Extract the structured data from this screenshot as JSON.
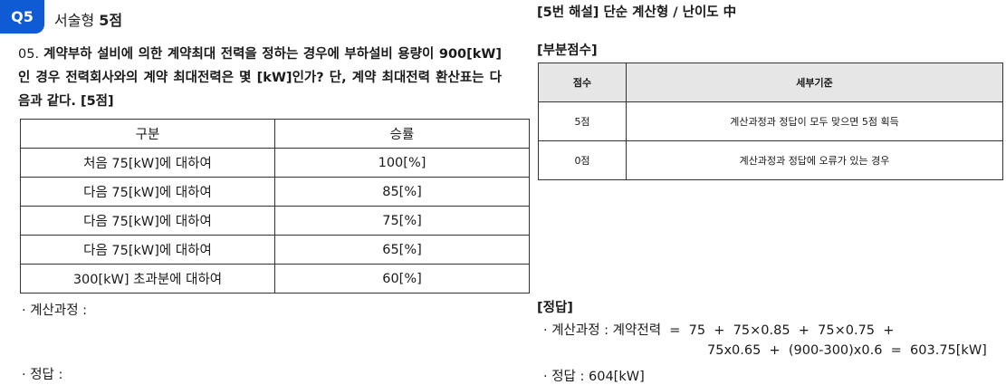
{
  "question": {
    "badge": "Q5",
    "type_label": "서술형 ",
    "type_points": "5점",
    "number": "05. ",
    "text": "계약부하 설비에 의한 계약최대 전력을 정하는 경우에 부하설비 용량이 900[kW] 인 경우 전력회사와의 계약 최대전력은 몇 [kW]인가? 단, 계약 최대전력 환산표는 다음과 같다. [5점]",
    "table": {
      "headers": [
        "구분",
        "승률"
      ],
      "rows": [
        [
          "처음 75[kW]에 대하여",
          "100[%]"
        ],
        [
          "다음 75[kW]에 대하여",
          "85[%]"
        ],
        [
          "다음 75[kW]에 대하여",
          "75[%]"
        ],
        [
          "다음 75[kW]에 대하여",
          "65[%]"
        ],
        [
          "300[kW] 초과분에 대하여",
          "60[%]"
        ]
      ]
    },
    "process_label": "· 계산과정 :",
    "answer_label": "· 정답 :"
  },
  "solution": {
    "title": "[5번 해설] 단순 계산형 / 난이도 中",
    "partial_title": "[부분점수]",
    "score_table": {
      "headers": [
        "점수",
        "세부기준"
      ],
      "rows": [
        [
          "5점",
          "계산과정과 정답이 모두 맞으면 5점 획득"
        ],
        [
          "0점",
          "계산과정과 정답에 오류가 있는 경우"
        ]
      ]
    },
    "answer_title": "[정답]",
    "calc_line1": "· 계산과정 : 계약전력  =  75  +  75×0.85  +  75×0.75  +",
    "calc_line2": "75x0.65  +  (900-300)x0.6  =  603.75[kW]",
    "answer_line": "· 정답 : 604[kW]"
  }
}
